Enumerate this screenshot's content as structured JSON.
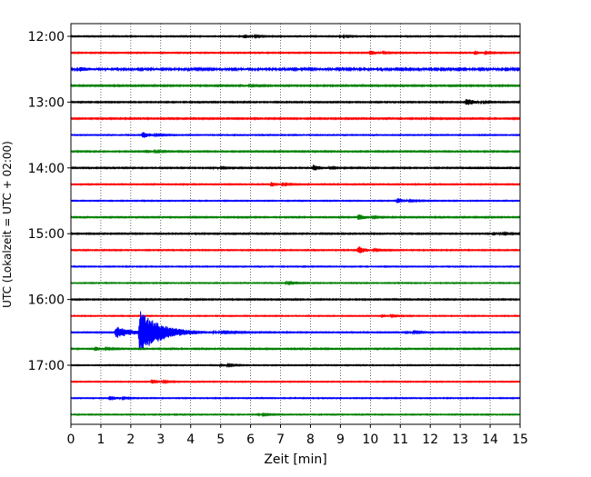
{
  "chart_data": {
    "type": "line",
    "xlabel": "Zeit  [min]",
    "ylabel": "UTC (Lokalzeit = UTC + 02:00)",
    "xlim": [
      0,
      15
    ],
    "x_ticks": [
      "0",
      "1",
      "2",
      "3",
      "4",
      "5",
      "6",
      "7",
      "8",
      "9",
      "10",
      "11",
      "12",
      "13",
      "14",
      "15"
    ],
    "y_ticks": [
      "12:00",
      "13:00",
      "14:00",
      "15:00",
      "16:00",
      "17:00"
    ],
    "grid": "vertical dotted at each minute",
    "trace_interval_min": 15,
    "trace_colors": [
      "#000000",
      "#ff0000",
      "#0000ff",
      "#008000"
    ],
    "traces": [
      {
        "start": "12:00",
        "color": "#000000",
        "noise": 0.18,
        "events": [
          {
            "t": 5.8,
            "amp": 0.6
          },
          {
            "t": 9.0,
            "amp": 0.25
          }
        ]
      },
      {
        "start": "12:15",
        "color": "#ff0000",
        "noise": 0.18,
        "events": [
          {
            "t": 10.0,
            "amp": 0.8
          },
          {
            "t": 13.5,
            "amp": 0.6
          }
        ]
      },
      {
        "start": "12:30",
        "color": "#0000ff",
        "noise": 0.4,
        "events": [
          {
            "t": 0.3,
            "amp": 0.5
          }
        ]
      },
      {
        "start": "12:45",
        "color": "#008000",
        "noise": 0.22,
        "events": [
          {
            "t": 5.7,
            "amp": 0.3
          }
        ]
      },
      {
        "start": "13:00",
        "color": "#000000",
        "noise": 0.2,
        "events": [
          {
            "t": 13.2,
            "amp": 1.2
          }
        ]
      },
      {
        "start": "13:15",
        "color": "#ff0000",
        "noise": 0.22,
        "events": []
      },
      {
        "start": "13:30",
        "color": "#0000ff",
        "noise": 0.16,
        "events": [
          {
            "t": 2.4,
            "amp": 1.0
          }
        ]
      },
      {
        "start": "13:45",
        "color": "#008000",
        "noise": 0.2,
        "events": [
          {
            "t": 2.5,
            "amp": 0.6
          }
        ]
      },
      {
        "start": "14:00",
        "color": "#000000",
        "noise": 0.2,
        "events": [
          {
            "t": 8.1,
            "amp": 1.1
          },
          {
            "t": 4.8,
            "amp": 0.3
          }
        ]
      },
      {
        "start": "14:15",
        "color": "#ff0000",
        "noise": 0.18,
        "events": [
          {
            "t": 6.7,
            "amp": 0.7
          }
        ]
      },
      {
        "start": "14:30",
        "color": "#0000ff",
        "noise": 0.16,
        "events": [
          {
            "t": 10.9,
            "amp": 0.9
          }
        ]
      },
      {
        "start": "14:45",
        "color": "#008000",
        "noise": 0.2,
        "events": [
          {
            "t": 9.6,
            "amp": 1.0
          }
        ]
      },
      {
        "start": "15:00",
        "color": "#000000",
        "noise": 0.2,
        "events": [
          {
            "t": 14.1,
            "amp": 0.5
          }
        ]
      },
      {
        "start": "15:15",
        "color": "#ff0000",
        "noise": 0.18,
        "events": [
          {
            "t": 9.6,
            "amp": 1.3
          }
        ]
      },
      {
        "start": "15:30",
        "color": "#0000ff",
        "noise": 0.16,
        "events": []
      },
      {
        "start": "15:45",
        "color": "#008000",
        "noise": 0.16,
        "events": [
          {
            "t": 7.2,
            "amp": 0.25
          }
        ]
      },
      {
        "start": "16:00",
        "color": "#000000",
        "noise": 0.2,
        "events": []
      },
      {
        "start": "16:15",
        "color": "#ff0000",
        "noise": 0.16,
        "events": [
          {
            "t": 10.4,
            "amp": 0.5
          }
        ]
      },
      {
        "start": "16:30",
        "color": "#0000ff",
        "noise": 0.18,
        "events": [
          {
            "t": 1.5,
            "amp": 2.0
          },
          {
            "t": 2.3,
            "amp": 7.0
          },
          {
            "t": 11.2,
            "amp": 0.5
          }
        ]
      },
      {
        "start": "16:45",
        "color": "#008000",
        "noise": 0.2,
        "events": [
          {
            "t": 0.8,
            "amp": 0.6
          }
        ]
      },
      {
        "start": "17:00",
        "color": "#000000",
        "noise": 0.16,
        "events": [
          {
            "t": 5.0,
            "amp": 0.5
          }
        ]
      },
      {
        "start": "17:15",
        "color": "#ff0000",
        "noise": 0.16,
        "events": [
          {
            "t": 2.7,
            "amp": 0.8
          }
        ]
      },
      {
        "start": "17:30",
        "color": "#0000ff",
        "noise": 0.16,
        "events": [
          {
            "t": 1.3,
            "amp": 0.8
          }
        ]
      },
      {
        "start": "17:45",
        "color": "#008000",
        "noise": 0.16,
        "events": [
          {
            "t": 6.3,
            "amp": 0.25
          }
        ]
      }
    ]
  }
}
